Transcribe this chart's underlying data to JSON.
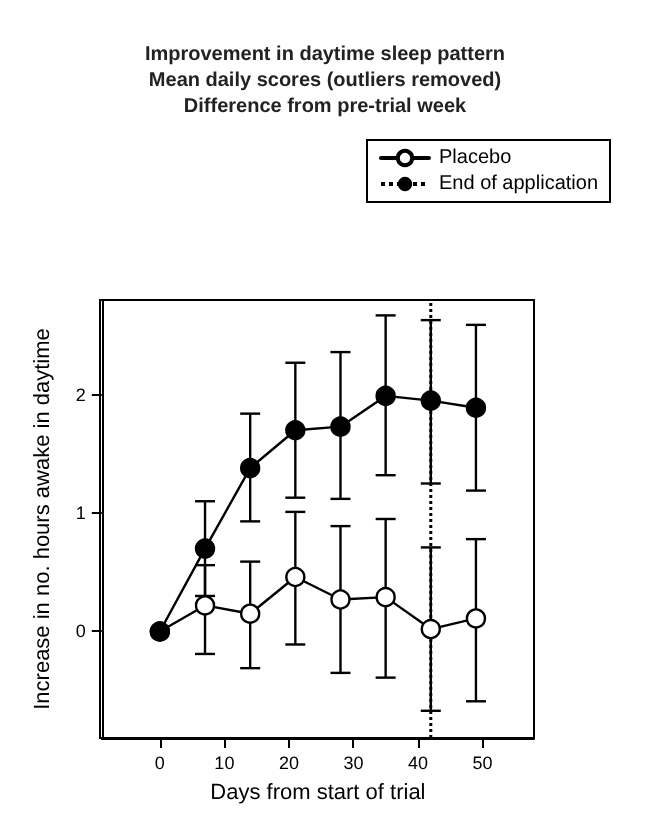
{
  "chart_data": {
    "type": "line",
    "title": "Improvement in daytime sleep pattern\nMean daily scores (outliers removed)\nDifference from pre-trial week",
    "xlabel": "Days from start of trial",
    "ylabel": "Increase in no. hours awake in daytime",
    "x": [
      0,
      7,
      14,
      21,
      28,
      35,
      42,
      49
    ],
    "series": [
      {
        "name": "Placebo",
        "color": "#ffffff",
        "values": [
          0,
          0.22,
          0.15,
          0.46,
          0.27,
          0.29,
          0.02,
          0.11
        ],
        "errors": [
          null,
          [
            -0.19,
            0.56
          ],
          [
            -0.31,
            0.59
          ],
          [
            -0.11,
            1.01
          ],
          [
            -0.35,
            0.89
          ],
          [
            -0.39,
            0.95
          ],
          [
            -0.67,
            0.71
          ],
          [
            -0.59,
            0.78
          ]
        ]
      },
      {
        "color": "#000000",
        "values": [
          0,
          0.7,
          1.38,
          1.7,
          1.73,
          1.99,
          1.95,
          1.89
        ],
        "errors": [
          null,
          [
            0.3,
            1.1
          ],
          [
            0.93,
            1.84
          ],
          [
            1.13,
            2.27
          ],
          [
            1.12,
            2.36
          ],
          [
            1.32,
            2.67
          ],
          [
            1.25,
            2.63
          ],
          [
            1.19,
            2.59
          ]
        ]
      }
    ],
    "ref_lines": [
      {
        "axis": "x",
        "value": 42,
        "label": "End of application",
        "line_style": "dotted",
        "color": "#000000"
      }
    ],
    "xlim": [
      -9,
      58
    ],
    "xticks": [
      0,
      10,
      20,
      30,
      40,
      50
    ],
    "ylim": [
      -0.9,
      2.8
    ],
    "yticks": [
      0,
      1,
      2
    ],
    "grid": false,
    "legend": "top right",
    "marker": "circle",
    "line_style": "solid"
  }
}
